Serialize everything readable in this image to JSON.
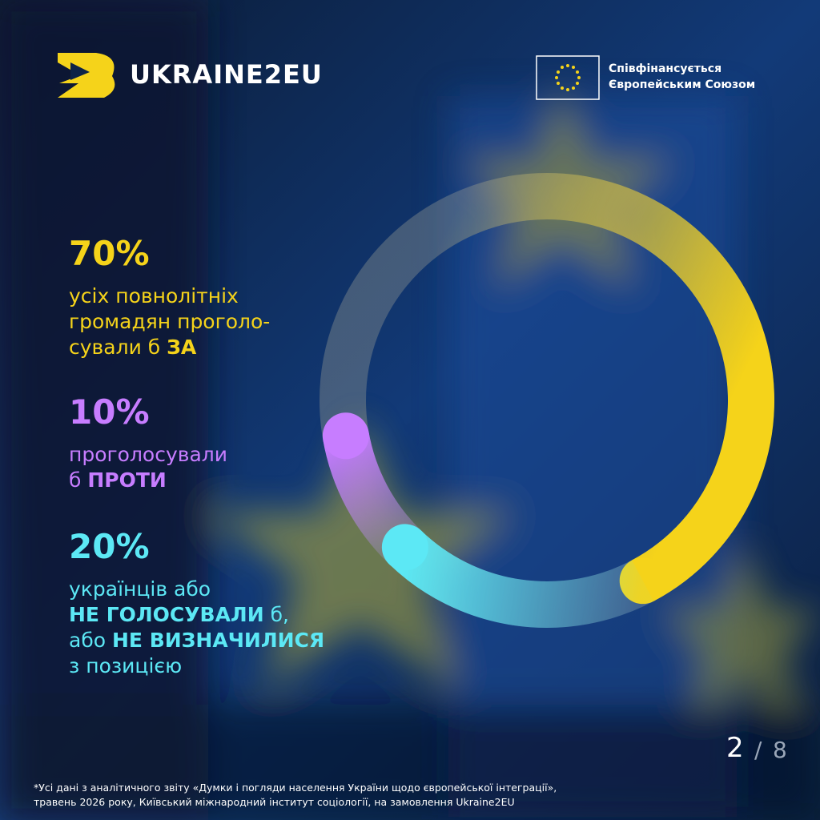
{
  "header": {
    "brand": "UKRAINE2EU",
    "cofinance_lines": [
      "Співфінансується",
      "Європейським Союзом"
    ]
  },
  "chart_data": {
    "type": "donut",
    "values": [
      70,
      10,
      20
    ],
    "value_labels": [
      "70%",
      "10%",
      "20%"
    ],
    "colors": [
      "#f5d31a",
      "#c77dff",
      "#5ce8f5"
    ],
    "descriptions": [
      [
        [
          {
            "text": "усіх повнолітніх",
            "bold": false
          }
        ],
        [
          {
            "text": "громадян проголо-",
            "bold": false
          }
        ],
        [
          {
            "text": "сували б ",
            "bold": false
          },
          {
            "text": "ЗА",
            "bold": true
          }
        ]
      ],
      [
        [
          {
            "text": "проголосували",
            "bold": false
          }
        ],
        [
          {
            "text": "б ",
            "bold": false
          },
          {
            "text": "ПРОТИ",
            "bold": true
          }
        ]
      ],
      [
        [
          {
            "text": "українців або",
            "bold": false
          }
        ],
        [
          {
            "text": "НЕ ГОЛОСУВАЛИ",
            "bold": true
          },
          {
            "text": " б,",
            "bold": false
          }
        ],
        [
          {
            "text": "або ",
            "bold": false
          },
          {
            "text": "НЕ ВИЗНАЧИЛИСЯ",
            "bold": true
          }
        ],
        [
          {
            "text": "з позицією",
            "bold": false
          }
        ]
      ]
    ]
  },
  "page": {
    "current": 2,
    "separator": "/",
    "total": 8
  },
  "footnote": [
    "*Усі дані з аналітичного звіту «Думки і погляди населення України щодо європейської інтеграції»,",
    "травень 2026 року, Київський міжнародний інститут соціології, на замовлення Ukraine2EU"
  ]
}
